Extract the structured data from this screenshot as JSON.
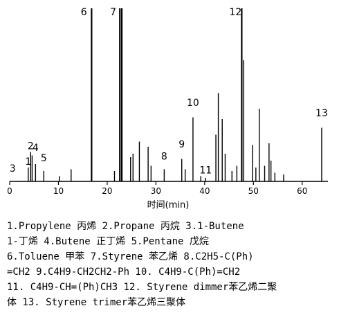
{
  "chart_data": {
    "type": "line",
    "xlabel": "时间(min)",
    "xlim": [
      0,
      65
    ],
    "xticks": [
      0,
      10,
      20,
      30,
      40,
      50,
      60
    ],
    "ylim": [
      0,
      100
    ],
    "series": [
      {
        "values_note": "",
        "peaks": [
          {
            "x": 3.8,
            "y": 8
          },
          {
            "x": 4.3,
            "y": 17
          },
          {
            "x": 4.6,
            "y": 15
          },
          {
            "x": 5.3,
            "y": 10
          },
          {
            "x": 7.0,
            "y": 6
          },
          {
            "x": 10.2,
            "y": 3
          },
          {
            "x": 12.6,
            "y": 7
          },
          {
            "x": 16.8,
            "y": 100
          },
          {
            "x": 21.5,
            "y": 6
          },
          {
            "x": 22.6,
            "y": 100
          },
          {
            "x": 23.0,
            "y": 100
          },
          {
            "x": 24.8,
            "y": 14
          },
          {
            "x": 25.3,
            "y": 16
          },
          {
            "x": 26.6,
            "y": 23
          },
          {
            "x": 28.4,
            "y": 20
          },
          {
            "x": 29.0,
            "y": 9
          },
          {
            "x": 31.7,
            "y": 7
          },
          {
            "x": 35.3,
            "y": 13
          },
          {
            "x": 36.0,
            "y": 7
          },
          {
            "x": 37.6,
            "y": 37
          },
          {
            "x": 39.2,
            "y": 3
          },
          {
            "x": 40.2,
            "y": 2
          },
          {
            "x": 42.3,
            "y": 27
          },
          {
            "x": 42.8,
            "y": 51
          },
          {
            "x": 43.6,
            "y": 36
          },
          {
            "x": 44.2,
            "y": 16
          },
          {
            "x": 45.6,
            "y": 6
          },
          {
            "x": 46.6,
            "y": 9
          },
          {
            "x": 47.6,
            "y": 100
          },
          {
            "x": 48.0,
            "y": 70
          },
          {
            "x": 49.8,
            "y": 21
          },
          {
            "x": 50.5,
            "y": 8
          },
          {
            "x": 51.2,
            "y": 42
          },
          {
            "x": 52.3,
            "y": 9
          },
          {
            "x": 53.2,
            "y": 22
          },
          {
            "x": 53.6,
            "y": 12
          },
          {
            "x": 54.4,
            "y": 5
          },
          {
            "x": 56.2,
            "y": 4
          },
          {
            "x": 64.0,
            "y": 31
          }
        ]
      }
    ],
    "annotations": [
      {
        "text": "1",
        "x": 3.8,
        "y": 8
      },
      {
        "text": "2",
        "x": 4.3,
        "y": 17
      },
      {
        "text": "3",
        "x": 0.6,
        "y": 4
      },
      {
        "text": "4",
        "x": 5.3,
        "y": 16
      },
      {
        "text": "5",
        "x": 7.0,
        "y": 10
      },
      {
        "text": "6",
        "x": 16.5,
        "y": 100
      },
      {
        "text": "7",
        "x": 22.5,
        "y": 100
      },
      {
        "text": "8",
        "x": 31.7,
        "y": 11
      },
      {
        "text": "9",
        "x": 35.3,
        "y": 18
      },
      {
        "text": "10",
        "x": 37.6,
        "y": 42
      },
      {
        "text": "11",
        "x": 40.2,
        "y": 3
      },
      {
        "text": "12",
        "x": 47.6,
        "y": 100
      },
      {
        "text": "13",
        "x": 64.0,
        "y": 36
      }
    ]
  },
  "legend_lines": [
    "1.Propylene  丙烯  2.Propane  丙烷  3.1-Butene",
    "1-丁烯  4.Butene  正丁烯  5.Pentane  戊烷",
    "6.Toluene  甲苯  7.Styrene  苯乙烯  8.C2H5-C(Ph)",
    "=CH2  9.C4H9-CH2CH2-Ph  10. C4H9-C(Ph)=CH2",
    "11. C4H9-CH=(Ph)CH3  12. Styrene dimmer苯乙烯二聚",
    "体  13. Styrene trimer苯乙烯三聚体"
  ]
}
